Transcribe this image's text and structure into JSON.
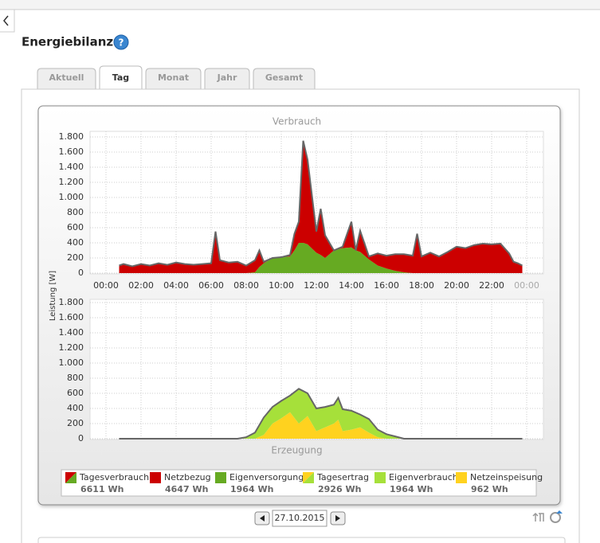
{
  "header": {
    "title": "Energiebilanz"
  },
  "tabs": [
    "Aktuell",
    "Tag",
    "Monat",
    "Jahr",
    "Gesamt"
  ],
  "active_tab": 1,
  "chart_data": [
    {
      "type": "area",
      "title": "Verbrauch",
      "ylabel": "Leistung [W]",
      "grid": true,
      "show_xticks": true,
      "outline_color": "#666666",
      "x": [
        0.75,
        1,
        1.5,
        2,
        2.5,
        3,
        3.5,
        4,
        4.5,
        5,
        5.5,
        6,
        6.25,
        6.5,
        7,
        7.5,
        8,
        8.5,
        8.75,
        9,
        9.5,
        10,
        10.5,
        10.75,
        11,
        11.25,
        11.5,
        12,
        12.25,
        12.5,
        13,
        13.5,
        14,
        14.25,
        14.5,
        15,
        15.5,
        16,
        16.5,
        17,
        17.5,
        17.75,
        18,
        18.5,
        19,
        19.5,
        20,
        20.5,
        21,
        21.5,
        22,
        22.5,
        23,
        23.25,
        23.5,
        23.75
      ],
      "series": [
        {
          "color": "#66aa22",
          "values": [
            0,
            0,
            0,
            0,
            0,
            0,
            0,
            0,
            0,
            0,
            0,
            0,
            0,
            0,
            0,
            0,
            0,
            10,
            80,
            130,
            200,
            210,
            220,
            300,
            400,
            400,
            380,
            270,
            240,
            200,
            300,
            330,
            340,
            300,
            280,
            180,
            100,
            60,
            30,
            10,
            0,
            0,
            0,
            0,
            0,
            0,
            0,
            0,
            0,
            0,
            0,
            0,
            0,
            0,
            0,
            0
          ]
        },
        {
          "color": "#cc0000",
          "values": [
            100,
            120,
            90,
            120,
            100,
            130,
            110,
            140,
            120,
            110,
            120,
            130,
            550,
            170,
            140,
            150,
            100,
            160,
            220,
            20,
            0,
            0,
            20,
            220,
            280,
            1350,
            1120,
            280,
            610,
            300,
            0,
            20,
            340,
            0,
            280,
            40,
            160,
            170,
            220,
            240,
            230,
            520,
            220,
            270,
            220,
            280,
            350,
            330,
            370,
            390,
            380,
            390,
            260,
            150,
            130,
            100
          ]
        }
      ],
      "xlim": [
        0,
        24
      ],
      "ylim": [
        0,
        1800
      ],
      "xticks": [
        {
          "value": 0,
          "label": "00:00"
        },
        {
          "value": 2,
          "label": "02:00"
        },
        {
          "value": 4,
          "label": "04:00"
        },
        {
          "value": 6,
          "label": "06:00"
        },
        {
          "value": 8,
          "label": "08:00"
        },
        {
          "value": 10,
          "label": "10:00"
        },
        {
          "value": 12,
          "label": "12:00"
        },
        {
          "value": 14,
          "label": "14:00"
        },
        {
          "value": 16,
          "label": "16:00"
        },
        {
          "value": 18,
          "label": "18:00"
        },
        {
          "value": 20,
          "label": "20:00"
        },
        {
          "value": 22,
          "label": "22:00"
        },
        {
          "value": 24,
          "label": "00:00"
        }
      ],
      "yticks": [
        0,
        200,
        400,
        600,
        800,
        {
          "value": 1000,
          "label": "1.000"
        },
        {
          "value": 1200,
          "label": "1.200"
        },
        {
          "value": 1400,
          "label": "1.400"
        },
        {
          "value": 1600,
          "label": "1.600"
        },
        {
          "value": 1800,
          "label": "1.800"
        }
      ]
    },
    {
      "type": "area",
      "title": "Erzeugung",
      "grid": true,
      "show_xticks": false,
      "outline_color": "#666666",
      "x": [
        0.75,
        7.5,
        8,
        8.5,
        9,
        9.5,
        10,
        10.5,
        11,
        11.5,
        12,
        12.5,
        13,
        13.25,
        13.5,
        14,
        14.5,
        15,
        15.5,
        16,
        16.5,
        17,
        23.75
      ],
      "series": [
        {
          "color": "#ffd21f",
          "values": [
            0,
            0,
            0,
            0,
            50,
            200,
            270,
            350,
            200,
            300,
            100,
            150,
            200,
            250,
            100,
            120,
            150,
            80,
            20,
            0,
            0,
            0,
            0
          ]
        },
        {
          "color": "#a6e03a",
          "values": [
            0,
            0,
            20,
            80,
            230,
            220,
            230,
            220,
            460,
            300,
            300,
            270,
            250,
            290,
            290,
            250,
            170,
            180,
            100,
            60,
            30,
            0,
            0
          ]
        }
      ],
      "xlim": [
        0,
        24
      ],
      "ylim": [
        0,
        1800
      ],
      "xticks": [
        {
          "value": 0,
          "label": "00:00"
        },
        {
          "value": 2,
          "label": "02:00"
        },
        {
          "value": 4,
          "label": "04:00"
        },
        {
          "value": 6,
          "label": "06:00"
        },
        {
          "value": 8,
          "label": "08:00"
        },
        {
          "value": 10,
          "label": "10:00"
        },
        {
          "value": 12,
          "label": "12:00"
        },
        {
          "value": 14,
          "label": "14:00"
        },
        {
          "value": 16,
          "label": "16:00"
        },
        {
          "value": 18,
          "label": "18:00"
        },
        {
          "value": 20,
          "label": "20:00"
        },
        {
          "value": 22,
          "label": "22:00"
        },
        {
          "value": 24,
          "label": "00:00"
        }
      ],
      "yticks": [
        0,
        200,
        400,
        600,
        800,
        {
          "value": 1000,
          "label": "1.000"
        },
        {
          "value": 1200,
          "label": "1.200"
        },
        {
          "value": 1400,
          "label": "1.400"
        },
        {
          "value": 1600,
          "label": "1.600"
        },
        {
          "value": 1800,
          "label": "1.800"
        }
      ]
    }
  ],
  "legend": [
    {
      "name": "Tagesverbrauch",
      "total": "6611 Wh",
      "colors": [
        "#cc0000",
        "#66aa22"
      ]
    },
    {
      "name": "Netzbezug",
      "total": "4647 Wh",
      "colors": [
        "#cc0000"
      ]
    },
    {
      "name": "Eigenversorgung",
      "total": "1964 Wh",
      "colors": [
        "#66aa22"
      ]
    },
    {
      "name": "Tagesertrag",
      "total": "2926 Wh",
      "colors": [
        "#ffd21f",
        "#a6e03a"
      ]
    },
    {
      "name": "Eigenverbrauch",
      "total": "1964 Wh",
      "colors": [
        "#a6e03a"
      ]
    },
    {
      "name": "Netzeinspeisung",
      "total": "962 Wh",
      "colors": [
        "#ffd21f"
      ]
    }
  ],
  "date": "27.10.2015"
}
